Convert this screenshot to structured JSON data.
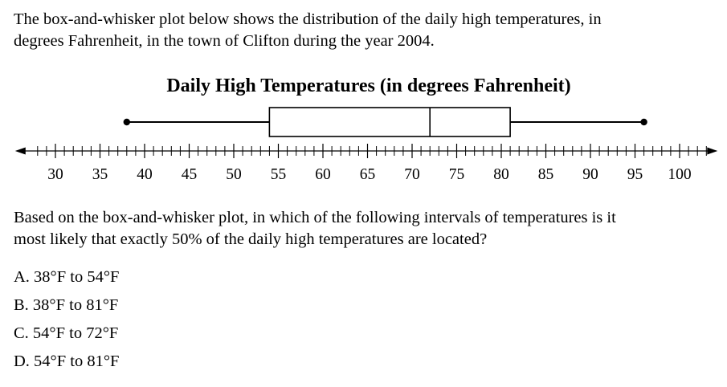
{
  "intro": {
    "line1": "The box-and-whisker plot below shows the distribution of the daily high temperatures, in",
    "line2": "degrees Fahrenheit, in the town of Clifton during the year 2004."
  },
  "chart_data": {
    "type": "box",
    "title": "Daily High Temperatures (in degrees Fahrenheit)",
    "xlabel": "",
    "ylabel": "",
    "xlim": [
      28,
      103
    ],
    "tick_step": 1,
    "label_step": 5,
    "tick_labels": [
      "30",
      "35",
      "40",
      "45",
      "50",
      "55",
      "60",
      "65",
      "70",
      "75",
      "80",
      "85",
      "90",
      "95",
      "100"
    ],
    "min": 38,
    "q1": 54,
    "median": 72,
    "q3": 81,
    "max": 96
  },
  "question": {
    "line1": "Based on the box-and-whisker plot, in which of the following intervals of temperatures is it",
    "line2": "most likely that exactly 50% of the daily high temperatures are located?"
  },
  "choices": [
    "A.  38°F to 54°F",
    "B.  38°F to 81°F",
    "C.  54°F to 72°F",
    "D.  54°F to 81°F"
  ]
}
